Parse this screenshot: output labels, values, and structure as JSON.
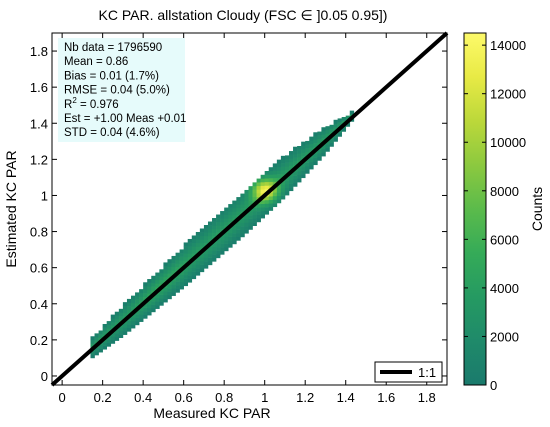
{
  "chart_data": {
    "type": "heatmap",
    "title": "KC PAR. allstation  Cloudy (FSC ∈ ]0.05 0.95])",
    "xlabel": "Measured KC PAR",
    "ylabel": "Estimated KC PAR",
    "xlim": [
      -0.05,
      1.9
    ],
    "ylim": [
      -0.05,
      1.9
    ],
    "x_ticks": [
      "0",
      "0.2",
      "0.4",
      "0.6",
      "0.8",
      "1",
      "1.2",
      "1.4",
      "1.6",
      "1.8"
    ],
    "y_ticks": [
      "0",
      "0.2",
      "0.4",
      "0.6",
      "0.8",
      "1",
      "1.2",
      "1.4",
      "1.6",
      "1.8"
    ],
    "x_tick_values": [
      0,
      0.2,
      0.4,
      0.6,
      0.8,
      1.0,
      1.2,
      1.4,
      1.6,
      1.8
    ],
    "y_tick_values": [
      0,
      0.2,
      0.4,
      0.6,
      0.8,
      1.0,
      1.2,
      1.4,
      1.6,
      1.8
    ],
    "grid": false,
    "stats_lines": [
      "Nb data  = 1796590",
      "Mean   =  0.86",
      "Bias     = 0.01 (1.7%)",
      "RMSE   =  0.04  (5.0%)",
      "R",
      "Est   = +1.00 Meas +0.01",
      "STD      = 0.04 (4.6%)"
    ],
    "r2_label": {
      "base": "R",
      "sup": "2",
      "rest": "      = 0.976"
    },
    "density_band": {
      "x_range": [
        0.15,
        1.43
      ],
      "center_slope": 1.0,
      "center_offset": 0.01,
      "half_width_by_x": [
        [
          0.15,
          0.05
        ],
        [
          0.3,
          0.08
        ],
        [
          0.6,
          0.11
        ],
        [
          0.9,
          0.12
        ],
        [
          1.1,
          0.11
        ],
        [
          1.3,
          0.07
        ],
        [
          1.43,
          0.02
        ]
      ],
      "peak": {
        "x": 1.0,
        "y": 1.03,
        "count": 14500
      }
    },
    "reference_line": {
      "name": "1:1",
      "slope": 1,
      "intercept": 0,
      "color": "#000000"
    },
    "legend": {
      "position": "bottom-right",
      "entries": [
        "1:1"
      ]
    },
    "colorbar": {
      "label": "Counts",
      "range": [
        0,
        14500
      ],
      "ticks": [
        "0",
        "2000",
        "4000",
        "6000",
        "8000",
        "10000",
        "12000",
        "14000"
      ],
      "tick_values": [
        0,
        2000,
        4000,
        6000,
        8000,
        10000,
        12000,
        14000
      ],
      "colormap": [
        "#1a7a6c",
        "#1f8a6a",
        "#259a62",
        "#35ab58",
        "#5bbb4b",
        "#8cc93f",
        "#bcd83a",
        "#e8ea45",
        "#fdfa6a"
      ]
    },
    "stats_box_color": "#e6fbfb"
  }
}
